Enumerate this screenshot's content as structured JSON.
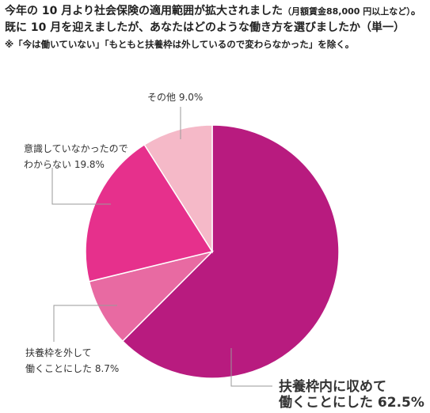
{
  "title": {
    "main": "今年の 10 月より社会保険の適用範囲が拡大されました",
    "sub": "（月額賃金88,000 円以上など）",
    "main2": "。既に 10 月を迎えましたが、あなたはどのような働き方を選びましたか（単一）"
  },
  "note": "※「今は働いていない」「もともと扶養枠は外しているので変わらなかった」を除く。",
  "chart_data": {
    "type": "pie",
    "start": "12 o'clock",
    "direction": "clockwise",
    "slices": [
      {
        "label_lines": [
          "扶養枠内に収めて",
          "働くことにした 62.5%"
        ],
        "value": 62.5,
        "color": "#b81b7f",
        "emphasis": true
      },
      {
        "label_lines": [
          "扶養枠を外して",
          "働くことにした 8.7%"
        ],
        "value": 8.7,
        "color": "#e86aa2",
        "emphasis": false
      },
      {
        "label_lines": [
          "意識していなかったので",
          "わからない 19.8%"
        ],
        "value": 19.8,
        "color": "#e6308c",
        "emphasis": false
      },
      {
        "label_lines": [
          "その他 9.0%"
        ],
        "value": 9.0,
        "color": "#f5b9c8",
        "emphasis": false
      }
    ],
    "emphasis_label_color": "#c41e5a"
  }
}
